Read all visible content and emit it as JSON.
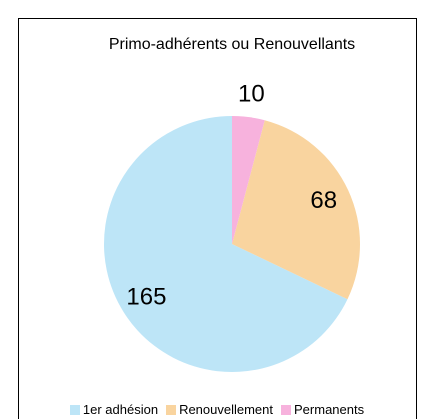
{
  "chart_data": {
    "type": "pie",
    "title": "Primo-adhérents ou Renouvellants",
    "categories": [
      "1er adhésion",
      "Renouvellement",
      "Permanents"
    ],
    "values": [
      165,
      68,
      10
    ],
    "colors": [
      "#bde5f7",
      "#f9d49f",
      "#f7b2dd"
    ],
    "direction": "counterclockwise",
    "start_angle": 0
  }
}
